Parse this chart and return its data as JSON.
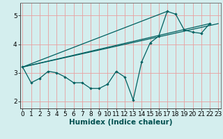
{
  "title": "",
  "xlabel": "Humidex (Indice chaleur)",
  "bg_color": "#d4eeee",
  "line_color": "#006060",
  "grid_color": "#e8a0a0",
  "x_data": [
    0,
    1,
    2,
    3,
    4,
    5,
    6,
    7,
    8,
    9,
    10,
    11,
    12,
    13,
    14,
    15,
    16,
    17,
    18,
    19,
    20,
    21,
    22,
    23
  ],
  "y_main": [
    3.2,
    2.65,
    2.8,
    3.05,
    3.0,
    2.85,
    2.65,
    2.65,
    2.45,
    2.45,
    2.6,
    3.05,
    2.85,
    2.05,
    3.38,
    4.05,
    4.28,
    5.15,
    5.05,
    4.5,
    4.42,
    4.38,
    4.72,
    null
  ],
  "trend1_x": [
    0,
    17
  ],
  "trend1_y": [
    3.2,
    5.15
  ],
  "trend2_x": [
    0,
    23
  ],
  "trend2_y": [
    3.2,
    4.72
  ],
  "trend3_x": [
    0,
    22
  ],
  "trend3_y": [
    3.2,
    4.72
  ],
  "ylim": [
    1.75,
    5.45
  ],
  "xlim": [
    -0.3,
    23.3
  ],
  "xticks": [
    0,
    1,
    2,
    3,
    4,
    5,
    6,
    7,
    8,
    9,
    10,
    11,
    12,
    13,
    14,
    15,
    16,
    17,
    18,
    19,
    20,
    21,
    22,
    23
  ],
  "yticks": [
    2,
    3,
    4,
    5
  ],
  "tick_fontsize": 6.5,
  "label_fontsize": 7.5
}
